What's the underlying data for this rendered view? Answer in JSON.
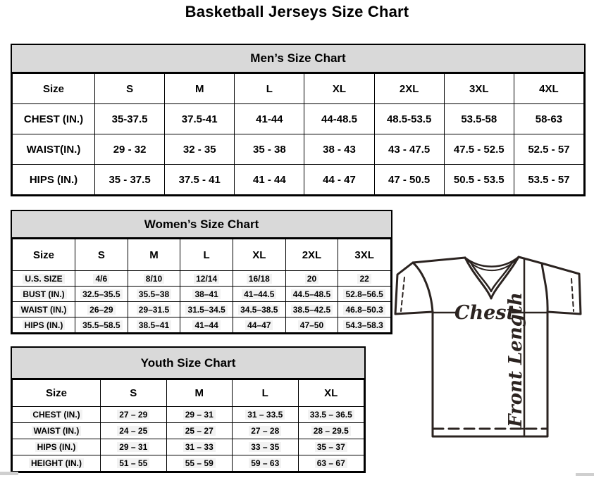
{
  "page_title": "Basketball Jerseys Size Chart",
  "mens_chart": {
    "title": "Men’s Size Chart",
    "columns": [
      "Size",
      "S",
      "M",
      "L",
      "XL",
      "2XL",
      "3XL",
      "4XL"
    ],
    "rows": [
      {
        "label": "CHEST (IN.)",
        "values": [
          "35-37.5",
          "37.5-41",
          "41-44",
          "44-48.5",
          "48.5-53.5",
          "53.5-58",
          "58-63"
        ]
      },
      {
        "label": "WAIST(IN.)",
        "values": [
          "29 - 32",
          "32 - 35",
          "35 - 38",
          "38 - 43",
          "43 - 47.5",
          "47.5 - 52.5",
          "52.5 - 57"
        ]
      },
      {
        "label": "HIPS (IN.)",
        "values": [
          "35 - 37.5",
          "37.5 - 41",
          "41 - 44",
          "44 - 47",
          "47 - 50.5",
          "50.5 - 53.5",
          "53.5 - 57"
        ]
      }
    ]
  },
  "womens_chart": {
    "title": "Women’s Size Chart",
    "columns": [
      "Size",
      "S",
      "M",
      "L",
      "XL",
      "2XL",
      "3XL"
    ],
    "rows": [
      {
        "label": "U.S. SIZE",
        "values": [
          "4/6",
          "8/10",
          "12/14",
          "16/18",
          "20",
          "22"
        ]
      },
      {
        "label": "BUST (IN.)",
        "values": [
          "32.5–35.5",
          "35.5–38",
          "38–41",
          "41–44.5",
          "44.5–48.5",
          "52.8–56.5"
        ]
      },
      {
        "label": "WAIST (IN.)",
        "values": [
          "26–29",
          "29–31.5",
          "31.5–34.5",
          "34.5–38.5",
          "38.5–42.5",
          "46.8–50.3"
        ]
      },
      {
        "label": "HIPS (IN.)",
        "values": [
          "35.5–58.5",
          "38.5–41",
          "41–44",
          "44–47",
          "47–50",
          "54.3–58.3"
        ]
      }
    ]
  },
  "youth_chart": {
    "title": "Youth Size Chart",
    "columns": [
      "Size",
      "S",
      "M",
      "L",
      "XL"
    ],
    "rows": [
      {
        "label": "CHEST (IN.)",
        "values": [
          "27 – 29",
          "29 – 31",
          "31 – 33.5",
          "33.5 – 36.5"
        ]
      },
      {
        "label": "WAIST (IN.)",
        "values": [
          "24 – 25",
          "25 – 27",
          "27 – 28",
          "28 – 29.5"
        ]
      },
      {
        "label": "HIPS (IN.)",
        "values": [
          "29 – 31",
          "31 – 33",
          "33 – 35",
          "35 – 37"
        ]
      },
      {
        "label": "HEIGHT (IN.)",
        "values": [
          "51 – 55",
          "55 – 59",
          "59 – 63",
          "63 – 67"
        ]
      }
    ]
  },
  "diagram": {
    "chest_label": "Chest",
    "front_length_label": "Front Length"
  },
  "colors": {
    "table_header_bg": "#d9d9d9",
    "table_border": "#000000",
    "text": "#000000",
    "diagram_line": "#2b2320"
  }
}
